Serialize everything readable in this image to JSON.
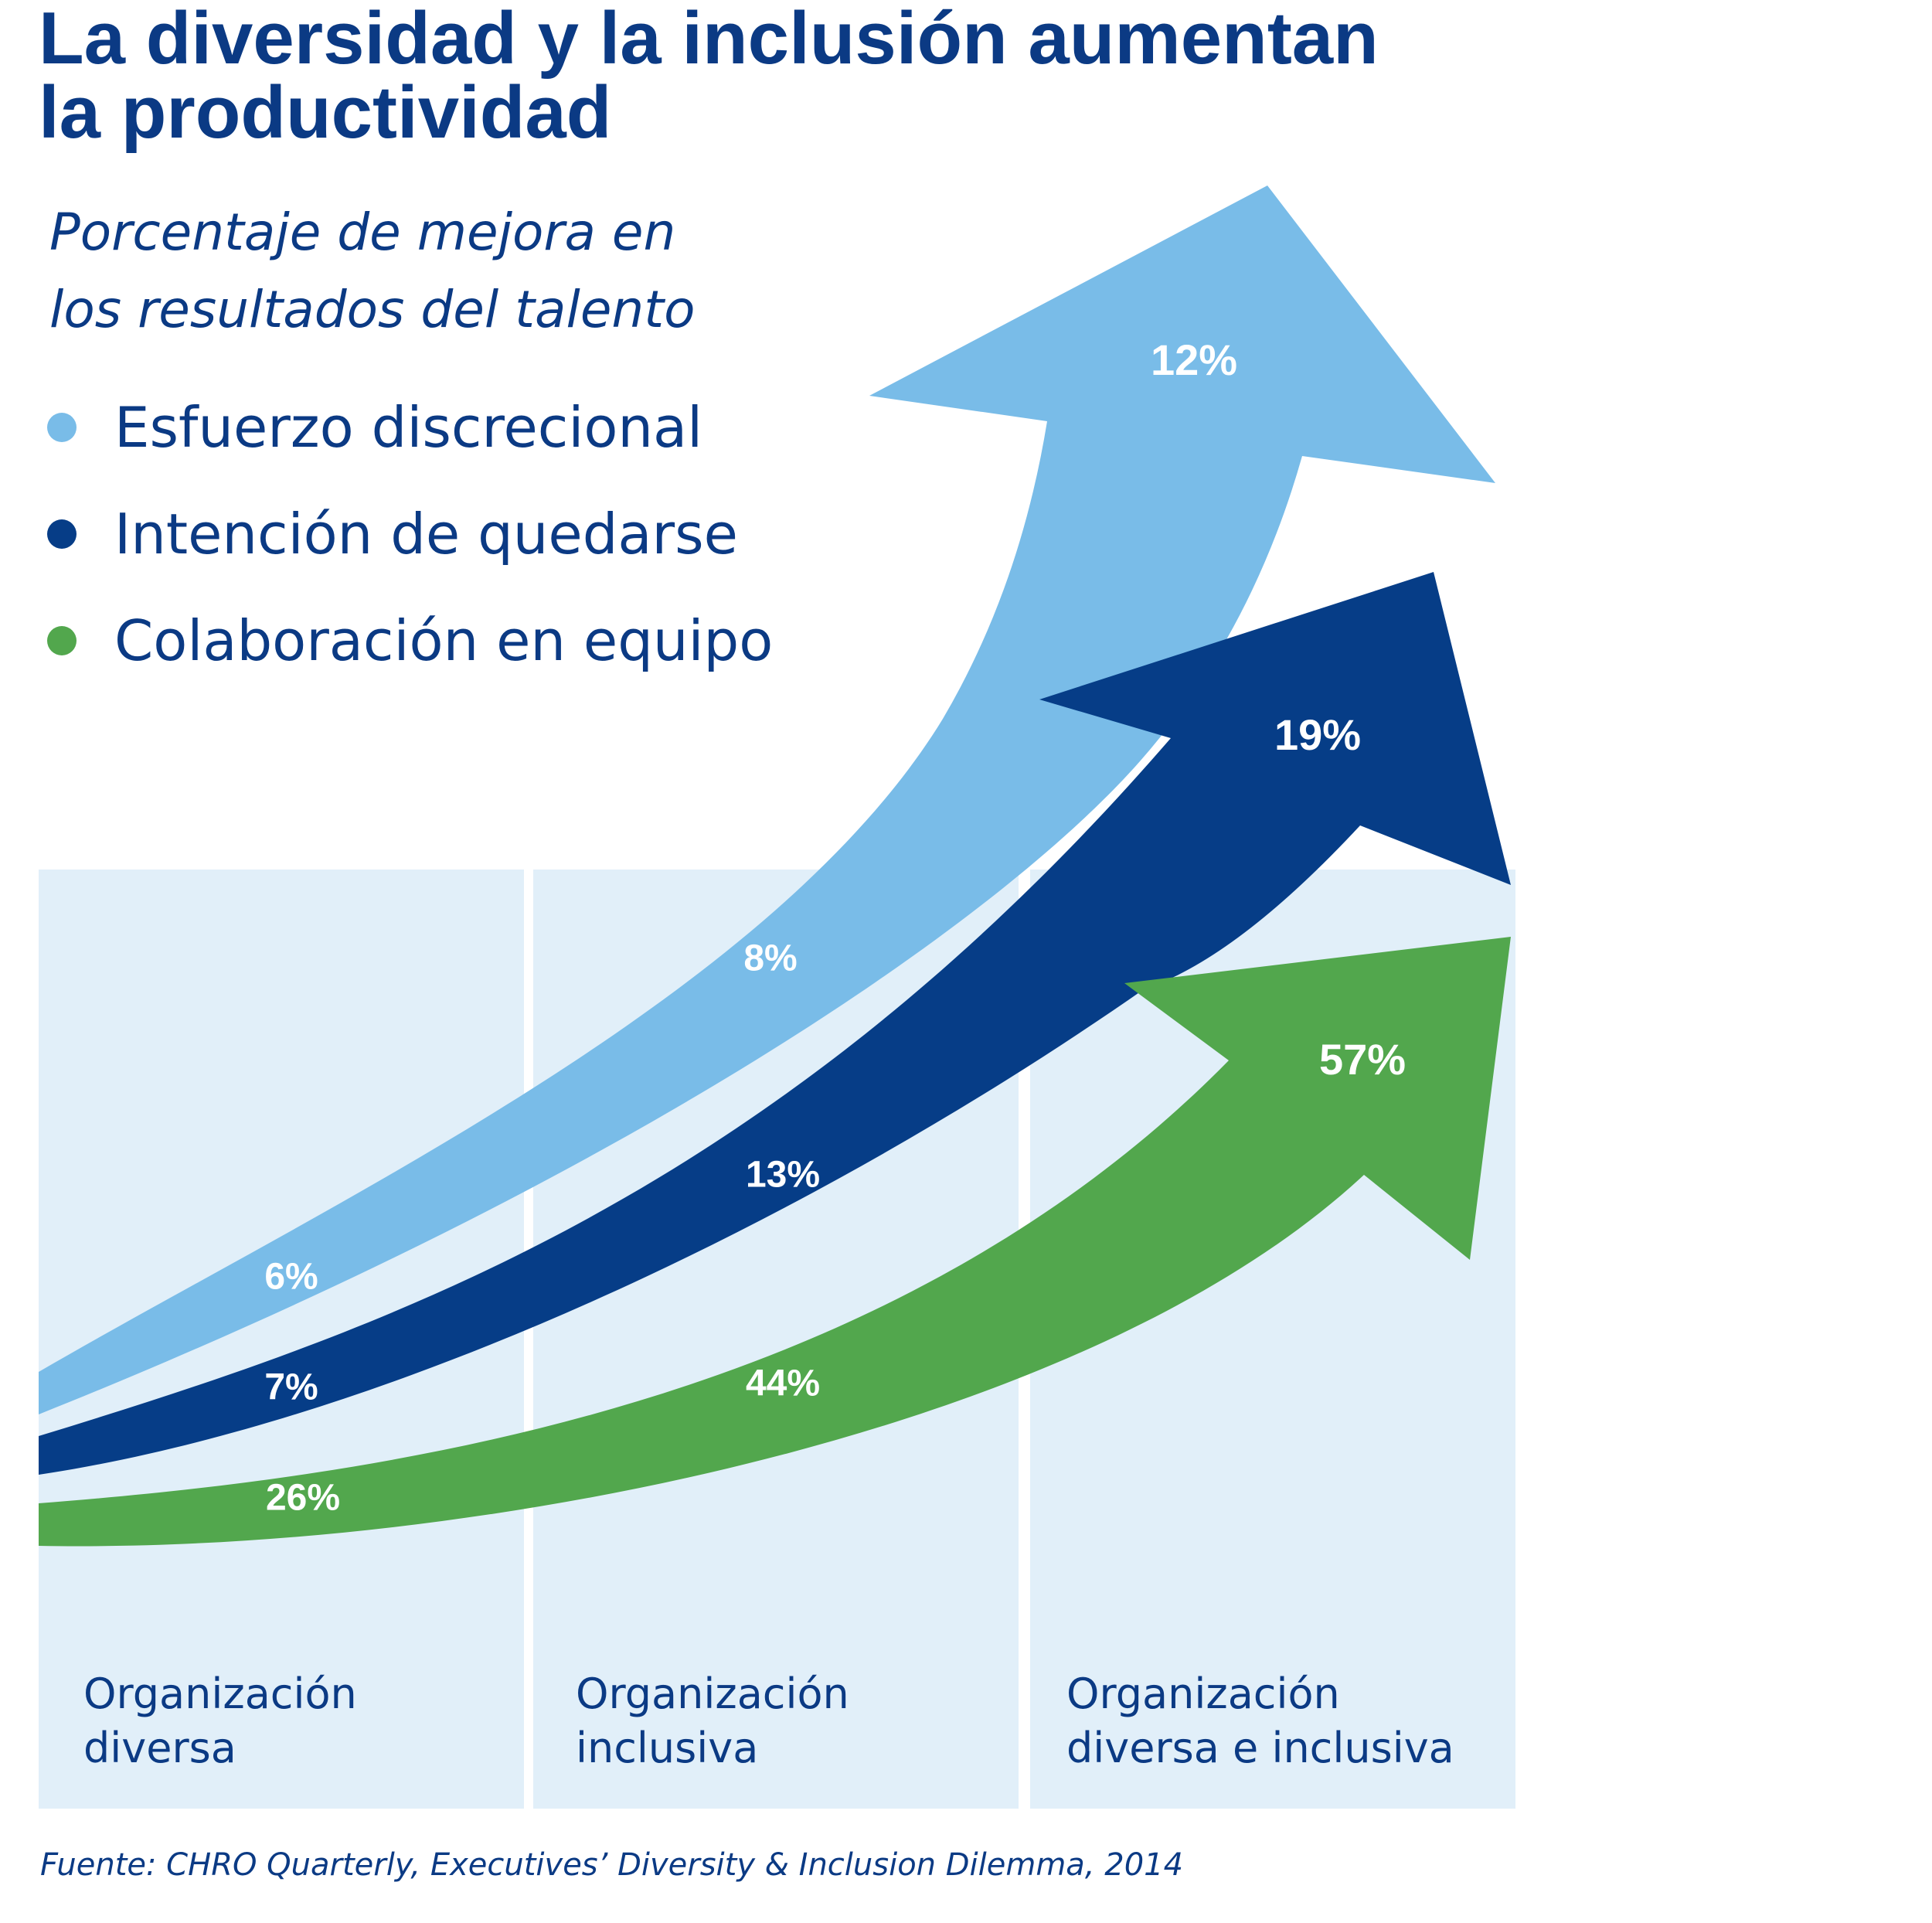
{
  "title_line1": "La diversidad y la inclusión aumentan",
  "title_line2": "la productividad",
  "subtitle_line1": "Porcentaje de mejora en",
  "subtitle_line2": "los resultados del talento",
  "source": "Fuente: CHRO Quarterly, Executives’ Diversity & Inclusion Dilemma, 2014",
  "chart_data": {
    "type": "area",
    "categories": [
      [
        "Organización",
        "diversa"
      ],
      [
        "Organización",
        "inclusiva"
      ],
      [
        "Organización",
        "diversa e inclusiva"
      ]
    ],
    "series": [
      {
        "name": "Esfuerzo discrecional",
        "color": "#79bce8",
        "values": [
          6,
          8,
          12
        ],
        "labels": [
          "6%",
          "8%",
          "12%"
        ]
      },
      {
        "name": "Intención de quedarse",
        "color": "#063d87",
        "values": [
          7,
          13,
          19
        ],
        "labels": [
          "7%",
          "13%",
          "19%"
        ]
      },
      {
        "name": "Colaboración en equipo",
        "color": "#52a74d",
        "values": [
          26,
          44,
          57
        ],
        "labels": [
          "26%",
          "44%",
          "57%"
        ]
      }
    ],
    "legend_position": "top-left",
    "panel_color": "#e1eff9"
  }
}
